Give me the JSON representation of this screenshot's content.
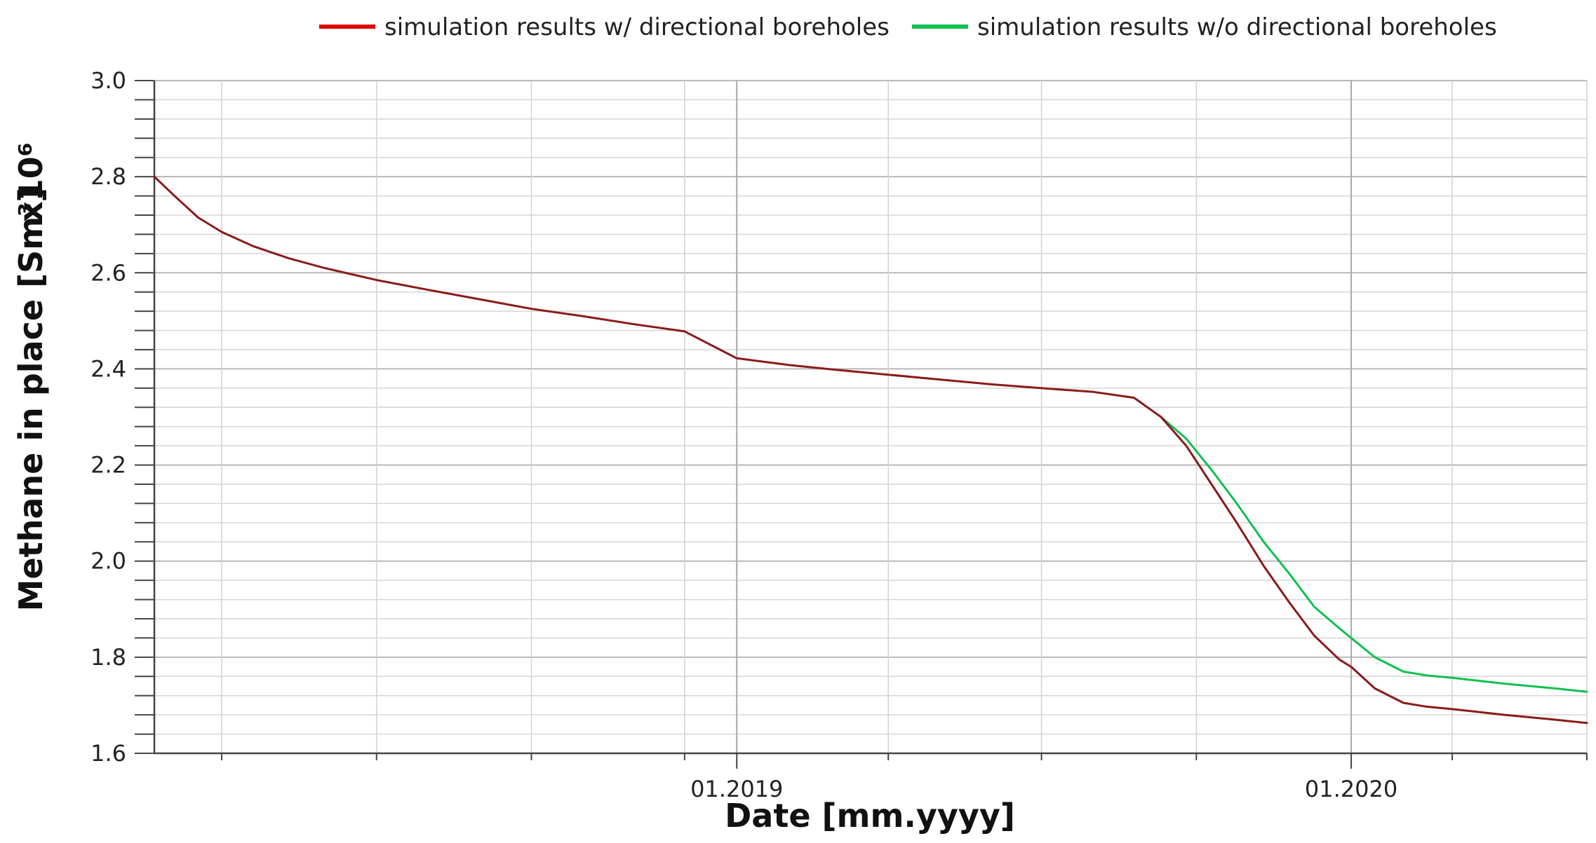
{
  "chart_data": {
    "type": "line",
    "xlabel": "Date [mm.yyyy]",
    "ylabel": "Methane in place [Sm³]",
    "y_multiplier": "x10⁶",
    "xlim": [
      "2018-01-20",
      "2020-05-20"
    ],
    "ylim": [
      1.6,
      3.0
    ],
    "y_ticks": [
      1.6,
      1.8,
      2.0,
      2.2,
      2.4,
      2.6,
      2.8,
      3.0
    ],
    "x_tick_labels": [
      {
        "date": "2019-01-01",
        "label": "01.2019"
      },
      {
        "date": "2020-01-01",
        "label": "01.2020"
      }
    ],
    "x_minor_dates": [
      "2018-03-01",
      "2018-06-01",
      "2018-09-01",
      "2018-12-01",
      "2019-04-01",
      "2019-07-01",
      "2019-10-01",
      "2020-03-01",
      "2020-05-20"
    ],
    "grid": true,
    "legend_position": "top-center",
    "series": [
      {
        "name": "simulation results w/ directional boreholes",
        "color": "#8b1a1a",
        "legend_color": "#e00000",
        "points": [
          [
            "2018-01-20",
            2.8
          ],
          [
            "2018-02-01",
            2.76
          ],
          [
            "2018-02-15",
            2.715
          ],
          [
            "2018-03-01",
            2.685
          ],
          [
            "2018-03-20",
            2.655
          ],
          [
            "2018-04-10",
            2.63
          ],
          [
            "2018-05-01",
            2.61
          ],
          [
            "2018-06-01",
            2.585
          ],
          [
            "2018-07-01",
            2.565
          ],
          [
            "2018-08-01",
            2.545
          ],
          [
            "2018-09-01",
            2.525
          ],
          [
            "2018-10-01",
            2.51
          ],
          [
            "2018-11-01",
            2.493
          ],
          [
            "2018-12-01",
            2.478
          ],
          [
            "2019-01-01",
            2.422
          ],
          [
            "2019-02-01",
            2.408
          ],
          [
            "2019-03-01",
            2.398
          ],
          [
            "2019-04-01",
            2.388
          ],
          [
            "2019-05-01",
            2.378
          ],
          [
            "2019-06-01",
            2.368
          ],
          [
            "2019-07-01",
            2.36
          ],
          [
            "2019-08-01",
            2.352
          ],
          [
            "2019-08-25",
            2.34
          ],
          [
            "2019-09-10",
            2.3
          ],
          [
            "2019-09-25",
            2.24
          ],
          [
            "2019-10-10",
            2.16
          ],
          [
            "2019-10-25",
            2.08
          ],
          [
            "2019-11-10",
            1.99
          ],
          [
            "2019-11-25",
            1.915
          ],
          [
            "2019-12-10",
            1.845
          ],
          [
            "2019-12-25",
            1.795
          ],
          [
            "2020-01-01",
            1.78
          ],
          [
            "2020-01-15",
            1.735
          ],
          [
            "2020-02-01",
            1.705
          ],
          [
            "2020-02-15",
            1.697
          ],
          [
            "2020-03-01",
            1.692
          ],
          [
            "2020-04-01",
            1.68
          ],
          [
            "2020-05-01",
            1.67
          ],
          [
            "2020-05-20",
            1.663
          ]
        ]
      },
      {
        "name": "simulation results w/o directional boreholes",
        "color": "#10c050",
        "legend_color": "#10c050",
        "points": [
          [
            "2019-09-10",
            2.3
          ],
          [
            "2019-09-25",
            2.255
          ],
          [
            "2019-10-10",
            2.19
          ],
          [
            "2019-10-25",
            2.12
          ],
          [
            "2019-11-10",
            2.04
          ],
          [
            "2019-11-25",
            1.975
          ],
          [
            "2019-12-10",
            1.905
          ],
          [
            "2019-12-25",
            1.86
          ],
          [
            "2020-01-01",
            1.84
          ],
          [
            "2020-01-15",
            1.8
          ],
          [
            "2020-02-01",
            1.77
          ],
          [
            "2020-02-15",
            1.762
          ],
          [
            "2020-03-01",
            1.757
          ],
          [
            "2020-04-01",
            1.745
          ],
          [
            "2020-05-01",
            1.735
          ],
          [
            "2020-05-20",
            1.728
          ]
        ]
      }
    ]
  }
}
